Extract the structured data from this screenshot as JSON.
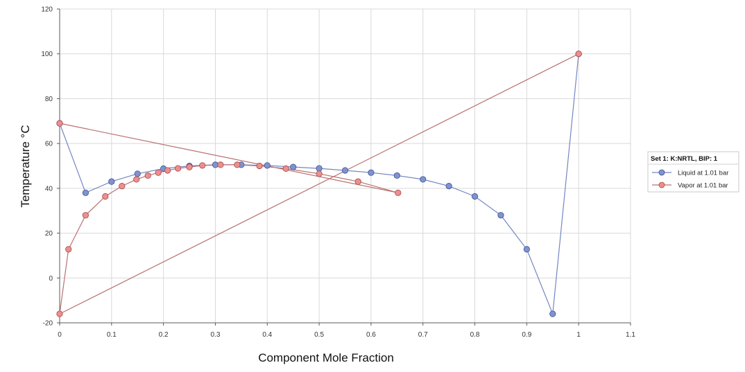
{
  "chart_data": {
    "type": "line",
    "xlabel": "Component Mole Fraction",
    "ylabel": "Temperature °C",
    "xlim": [
      0,
      1.1
    ],
    "ylim": [
      -20,
      120
    ],
    "xticks": [
      0,
      0.1,
      0.2,
      0.3,
      0.4,
      0.5,
      0.6,
      0.7,
      0.8,
      0.9,
      1,
      1.1
    ],
    "yticks": [
      -20,
      0,
      20,
      40,
      60,
      80,
      100,
      120
    ],
    "xtick_labels": [
      "0",
      "0.1",
      "0.2",
      "0.3",
      "0.4",
      "0.5",
      "0.6",
      "0.7",
      "0.8",
      "0.9",
      "1",
      "1.1"
    ],
    "ytick_labels": [
      "-20",
      "0",
      "20",
      "40",
      "60",
      "80",
      "100",
      "120"
    ],
    "grid": true,
    "legend": {
      "title": "Set 1: K:NRTL, BIP: 1",
      "placement": "right"
    },
    "series": [
      {
        "name": "Liquid at 1.01 bar",
        "color": "#7386c4",
        "marker_fill": "#7f93d1",
        "marker_stroke": "#3d4f8f",
        "x": [
          0,
          0.05,
          0.1,
          0.15,
          0.2,
          0.25,
          0.3,
          0.35,
          0.4,
          0.45,
          0.5,
          0.55,
          0.6,
          0.65,
          0.7,
          0.75,
          0.8,
          0.85,
          0.9,
          0.95,
          1.0
        ],
        "y": [
          69,
          38,
          43,
          46.5,
          48.8,
          50,
          50.5,
          50.5,
          50.2,
          49.5,
          48.9,
          48,
          47,
          45.7,
          44,
          41,
          36.4,
          28,
          12.8,
          -16,
          100
        ]
      },
      {
        "name": "Vapor at 1.01 bar",
        "color": "#b87070",
        "marker_fill": "#ee8e8e",
        "marker_stroke": "#a04848",
        "x": [
          1.0,
          0,
          0.017,
          0.05,
          0.088,
          0.12,
          0.148,
          0.17,
          0.19,
          0.208,
          0.228,
          0.25,
          0.275,
          0.31,
          0.342,
          0.385,
          0.436,
          0.5,
          0.575,
          0.652,
          0
        ],
        "y": [
          100,
          -16,
          12.8,
          28,
          36.4,
          41,
          44,
          45.7,
          47,
          48,
          48.9,
          49.5,
          50.2,
          50.5,
          50.5,
          50,
          48.8,
          46.5,
          43,
          38,
          69
        ]
      }
    ]
  }
}
